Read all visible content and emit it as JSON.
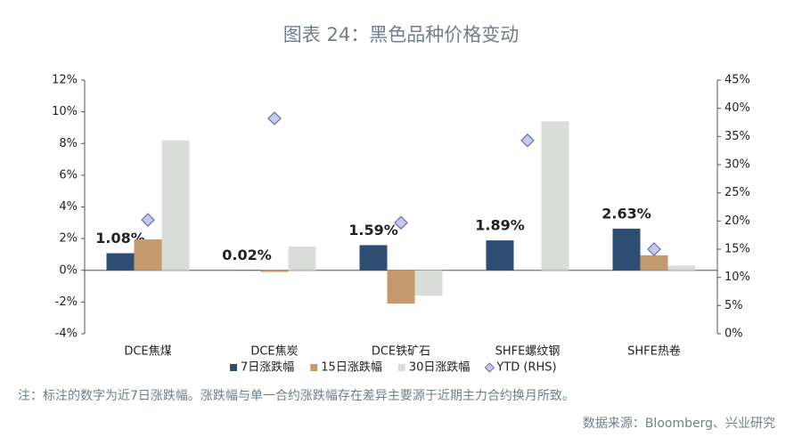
{
  "chart_data": {
    "type": "bar",
    "title": "图表 24：黑色品种价格变动",
    "categories": [
      "DCE焦煤",
      "DCE焦炭",
      "DCE铁矿石",
      "SHFE螺纹钢",
      "SHFE热卷"
    ],
    "series": [
      {
        "name": "7日涨跌幅",
        "color": "#2e4d73",
        "values": [
          1.08,
          0.02,
          1.59,
          1.89,
          2.63
        ],
        "value_labels": [
          "1.08%",
          "0.02%",
          "1.59%",
          "1.89%",
          "2.63%"
        ]
      },
      {
        "name": "15日涨跌幅",
        "color": "#c49a6c",
        "values": [
          1.95,
          -0.1,
          -2.1,
          0,
          0.95
        ]
      },
      {
        "name": "30日涨跌幅",
        "color": "#d9dcd9",
        "values": [
          8.2,
          1.5,
          -1.6,
          9.4,
          0.3
        ]
      },
      {
        "name": "YTD (RHS)",
        "color": "#c5c9ea",
        "type": "scatter",
        "axis": "y2",
        "values": [
          20.2,
          38.2,
          19.7,
          34.3,
          15.0
        ]
      }
    ],
    "ylim": [
      -4,
      12
    ],
    "yticks": [
      {
        "value": -4,
        "label": "-4%"
      },
      {
        "value": -2,
        "label": "-2%"
      },
      {
        "value": 0,
        "label": "0%"
      },
      {
        "value": 2,
        "label": "2%"
      },
      {
        "value": 4,
        "label": "4%"
      },
      {
        "value": 6,
        "label": "6%"
      },
      {
        "value": 8,
        "label": "8%"
      },
      {
        "value": 10,
        "label": "10%"
      },
      {
        "value": 12,
        "label": "12%"
      }
    ],
    "y2lim": [
      0,
      45
    ],
    "y2ticks": [
      {
        "value": 0,
        "label": "0%"
      },
      {
        "value": 5,
        "label": "5%"
      },
      {
        "value": 10,
        "label": "10%"
      },
      {
        "value": 15,
        "label": "15%"
      },
      {
        "value": 20,
        "label": "20%"
      },
      {
        "value": 25,
        "label": "25%"
      },
      {
        "value": 30,
        "label": "30%"
      },
      {
        "value": 35,
        "label": "35%"
      },
      {
        "value": 40,
        "label": "40%"
      },
      {
        "value": 45,
        "label": "45%"
      }
    ],
    "grid": false,
    "note": "注：标注的数字为近7日涨跌幅。涨跌幅与单一合约涨跌幅存在差异主要源于近期主力合约换月所致。",
    "source": "数据来源：Bloomberg、兴业研究"
  }
}
